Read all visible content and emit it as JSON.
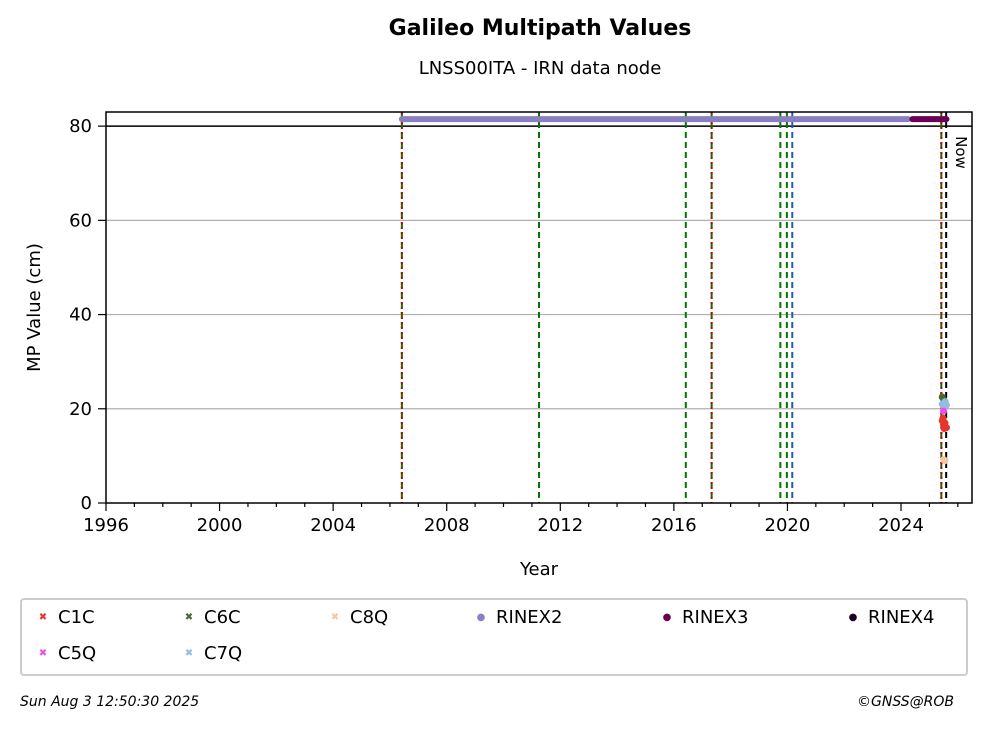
{
  "header": {
    "title": "Galileo Multipath Values",
    "subtitle": "LNSS00ITA - IRN data node"
  },
  "footer": {
    "timestamp": "Sun Aug  3 12:50:30 2025",
    "copyright": "©GNSS@ROB"
  },
  "colors": {
    "C1C": "#e8352a",
    "C5Q": "#ee4cec",
    "C6C": "#4b6a2c",
    "C7Q": "#90bde0",
    "C8Q": "#f5c7a2",
    "RINEX2": "#8a7fc0",
    "RINEX3": "#6b0057",
    "RINEX4": "#1a0022",
    "vline_green": "#007700",
    "vline_red": "#cc0000",
    "vline_blue": "#1f5fa8",
    "vline_now": "#000000",
    "grid": "#b0b0b0"
  },
  "chart_data": {
    "type": "scatter",
    "xlabel": "Year",
    "ylabel": "MP Value (cm)",
    "xlim": [
      1996,
      2026.5
    ],
    "ylim": [
      0,
      83
    ],
    "x_ticks": [
      1996,
      2000,
      2004,
      2008,
      2012,
      2016,
      2020,
      2024
    ],
    "y_ticks": [
      0,
      20,
      40,
      60,
      80
    ],
    "grid": "y",
    "legend_placement": "below",
    "legend": [
      "C1C",
      "C6C",
      "C8Q",
      "RINEX2",
      "RINEX3",
      "RINEX4",
      "C5Q",
      "C7Q"
    ],
    "now_label": "Now",
    "now_x": 2025.59,
    "threshold_y": 80,
    "vertical_lines": [
      {
        "x": 2006.42,
        "style": "red-green"
      },
      {
        "x": 2011.25,
        "style": "green"
      },
      {
        "x": 2016.42,
        "style": "green"
      },
      {
        "x": 2017.33,
        "style": "red-green"
      },
      {
        "x": 2019.75,
        "style": "green"
      },
      {
        "x": 2019.98,
        "style": "green"
      },
      {
        "x": 2020.17,
        "style": "blue"
      },
      {
        "x": 2025.42,
        "style": "red-green"
      }
    ],
    "series": [
      {
        "name": "RINEX2",
        "type": "band",
        "x_start": 2006.42,
        "x_end": 2024.25,
        "y": 81.5
      },
      {
        "name": "RINEX3",
        "type": "band",
        "x_start": 2024.4,
        "x_end": 2025.6,
        "y": 81.5
      },
      {
        "name": "C1C",
        "type": "points",
        "x": [
          2025.45,
          2025.5,
          2025.55,
          2025.6,
          2025.48,
          2025.52
        ],
        "y": [
          17.5,
          16.5,
          17.0,
          16.0,
          18.0,
          15.8
        ]
      },
      {
        "name": "C6C",
        "type": "points",
        "x": [
          2025.45,
          2025.5,
          2025.55
        ],
        "y": [
          22.5,
          22.0,
          21.5
        ]
      },
      {
        "name": "C7Q",
        "type": "points",
        "x": [
          2025.45,
          2025.5,
          2025.55,
          2025.6
        ],
        "y": [
          21.0,
          20.5,
          21.5,
          20.8
        ]
      },
      {
        "name": "C8Q",
        "type": "points",
        "x": [
          2025.5,
          2025.55
        ],
        "y": [
          9.2,
          9.0
        ]
      },
      {
        "name": "C5Q",
        "type": "points",
        "x": [
          2025.5
        ],
        "y": [
          19.5
        ]
      }
    ]
  }
}
